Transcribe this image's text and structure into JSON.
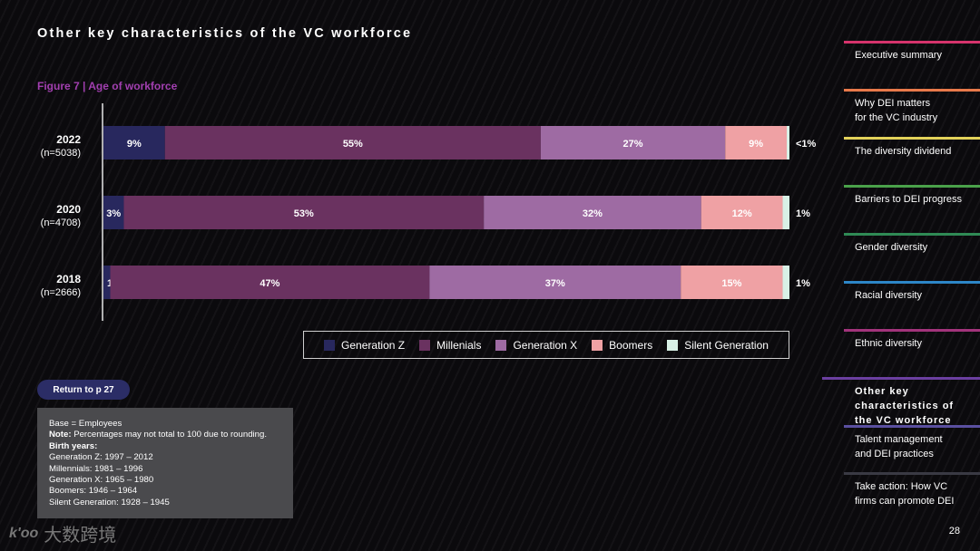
{
  "page_title": "Other key characteristics of the VC workforce",
  "figure_label": "Figure 7  |  Age of workforce",
  "colors": {
    "generation_z": "#28285e",
    "millenials": "#6a3260",
    "generation_x": "#9e6ba3",
    "boomers": "#efa1a4",
    "silent_generation": "#d8f0e6"
  },
  "chart_data": {
    "type": "bar",
    "orientation": "horizontal",
    "stacked": true,
    "categories": [
      "2022",
      "2020",
      "2018"
    ],
    "category_sublabels": [
      "(n=5038)",
      "(n=4708)",
      "(n=2666)"
    ],
    "series": [
      {
        "name": "Generation Z",
        "values": [
          9,
          3,
          1
        ],
        "labels": [
          "9%",
          "3%",
          "1%"
        ]
      },
      {
        "name": "Millenials",
        "values": [
          55,
          53,
          47
        ],
        "labels": [
          "55%",
          "53%",
          "47%"
        ]
      },
      {
        "name": "Generation X",
        "values": [
          27,
          32,
          37
        ],
        "labels": [
          "27%",
          "32%",
          "37%"
        ]
      },
      {
        "name": "Boomers",
        "values": [
          9,
          12,
          15
        ],
        "labels": [
          "9%",
          "12%",
          "15%"
        ]
      },
      {
        "name": "Silent Generation",
        "values": [
          0.4,
          1,
          1
        ],
        "labels": [
          "<1%",
          "1%",
          "1%"
        ]
      }
    ],
    "legend_position": "bottom",
    "grid": false
  },
  "return_button": "Return to p 27",
  "notes": {
    "base": "Base = Employees",
    "note_label": "Note:",
    "note_text": "Percentages may not total to 100 due to rounding.",
    "birth_years_label": "Birth years:",
    "lines": [
      "Generation Z: 1997 – 2012",
      "Millennials: 1981 – 1996",
      "Generation X: 1965 – 1980",
      "Boomers: 1946 – 1964",
      "Silent Generation: 1928 – 1945"
    ]
  },
  "nav": [
    {
      "label": "Executive summary",
      "color": "#d6336c",
      "active": false
    },
    {
      "label": "Why DEI matters\nfor the VC industry",
      "color": "#e8794a",
      "active": false
    },
    {
      "label": "The diversity dividend",
      "color": "#e3d25a",
      "active": false
    },
    {
      "label": "Barriers to DEI progress",
      "color": "#4aa14a",
      "active": false
    },
    {
      "label": "Gender diversity",
      "color": "#2f8a55",
      "active": false
    },
    {
      "label": "Racial diversity",
      "color": "#2d86c7",
      "active": false
    },
    {
      "label": "Ethnic diversity",
      "color": "#a2337b",
      "active": false
    },
    {
      "label": "Other key\ncharacteristics of\nthe VC workforce",
      "color": "#6b3fa0",
      "active": true
    },
    {
      "label": "Talent management\nand DEI practices",
      "color": "#5a4fa0",
      "active": false
    },
    {
      "label": "Take action: How VC\nfirms can promote DEI",
      "color": "#3a3a44",
      "active": false
    }
  ],
  "page_number": "28",
  "watermark": {
    "logo": "k'oo",
    "text": "大数跨境"
  }
}
